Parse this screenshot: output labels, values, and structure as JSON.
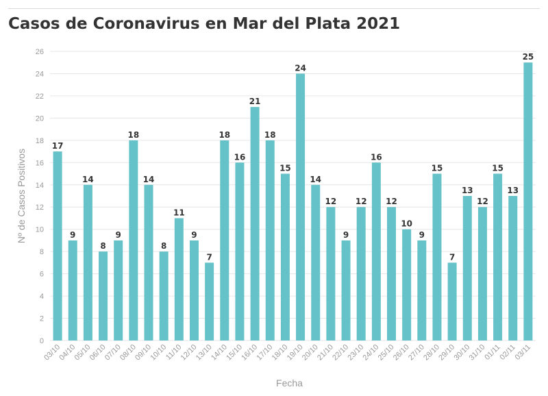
{
  "chart_data": {
    "type": "bar",
    "title": "Casos de Coronavirus en Mar del Plata 2021",
    "xlabel": "Fecha",
    "ylabel": "Nº de Casos Positivos",
    "ylim": [
      0,
      26
    ],
    "yticks": [
      0,
      2,
      4,
      6,
      8,
      10,
      12,
      14,
      16,
      18,
      20,
      22,
      24,
      26
    ],
    "grid": true,
    "bar_color": "#66c2c9",
    "categories": [
      "03/10",
      "04/10",
      "05/10",
      "06/10",
      "07/10",
      "08/10",
      "09/10",
      "10/10",
      "11/10",
      "12/10",
      "13/10",
      "14/10",
      "15/10",
      "16/10",
      "17/10",
      "18/10",
      "19/10",
      "20/10",
      "21/10",
      "22/10",
      "23/10",
      "24/10",
      "25/10",
      "26/10",
      "27/10",
      "28/10",
      "29/10",
      "30/10",
      "31/10",
      "01/11",
      "02/11",
      "03/11"
    ],
    "values": [
      17,
      9,
      14,
      8,
      9,
      18,
      14,
      8,
      11,
      9,
      7,
      18,
      16,
      21,
      18,
      15,
      24,
      14,
      12,
      9,
      12,
      16,
      12,
      10,
      9,
      15,
      7,
      13,
      12,
      15,
      13,
      25
    ]
  }
}
